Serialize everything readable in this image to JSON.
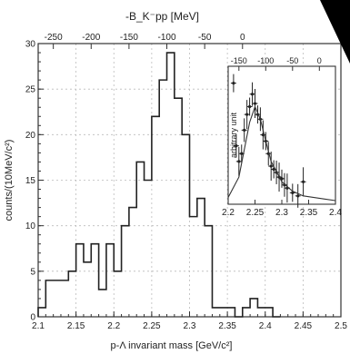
{
  "chart_data": [
    {
      "type": "line",
      "step": true,
      "xlabel": "p-Λ invariant mass [GeV/c²]",
      "ylabel": "counts/(10MeV/c²)",
      "top_axis_label": "-B_K⁻pp [MeV]",
      "xlim": [
        2.1,
        2.5
      ],
      "ylim": [
        0,
        30
      ],
      "grid": true,
      "x_ticks": [
        "2.1",
        "2.15",
        "2.2",
        "2.25",
        "2.3",
        "2.35",
        "2.4",
        "2.45",
        "2.5"
      ],
      "y_ticks": [
        "0",
        "5",
        "10",
        "15",
        "20",
        "25",
        "30"
      ],
      "top_ticks": [
        "-250",
        "-200",
        "-150",
        "-100",
        "-50",
        "0"
      ],
      "series": [
        {
          "bin_edges": [
            2.1,
            2.11,
            2.12,
            2.13,
            2.14,
            2.15,
            2.16,
            2.17,
            2.18,
            2.19,
            2.2,
            2.21,
            2.22,
            2.23,
            2.24,
            2.25,
            2.26,
            2.27,
            2.28,
            2.29,
            2.3,
            2.31,
            2.32,
            2.33,
            2.34,
            2.35,
            2.36,
            2.37,
            2.38,
            2.39,
            2.4,
            2.41,
            2.42
          ],
          "counts": [
            1,
            4,
            4,
            4,
            5,
            8,
            6,
            8,
            3,
            8,
            5,
            10,
            12,
            17,
            15,
            22,
            26,
            29,
            24,
            20,
            11,
            13,
            10,
            1,
            1,
            1,
            0,
            1,
            2,
            1,
            1,
            0
          ]
        }
      ]
    },
    {
      "type": "line",
      "inset": true,
      "ylabel": "arbitrary unit",
      "xlim": [
        2.2,
        2.4
      ],
      "x_ticks": [
        "2.2",
        "2.25",
        "2.3",
        "2.35",
        "2.4"
      ],
      "top_ticks": [
        "-150",
        "-100",
        "-50",
        "0"
      ],
      "series": [
        {
          "x": [
            2.21,
            2.215,
            2.22,
            2.225,
            2.23,
            2.235,
            2.24,
            2.245,
            2.25,
            2.255,
            2.26,
            2.265,
            2.27,
            2.275,
            2.28,
            2.285,
            2.29,
            2.295,
            2.3,
            2.305,
            2.31,
            2.32,
            2.33,
            2.34
          ],
          "y": [
            0.75,
            0.35,
            0.25,
            0.3,
            0.45,
            0.55,
            0.6,
            0.68,
            0.62,
            0.55,
            0.52,
            0.42,
            0.38,
            0.3,
            0.22,
            0.2,
            0.18,
            0.15,
            0.14,
            0.1,
            0.08,
            0.05,
            0.03,
            0.12
          ]
        },
        {
          "x": [
            2.2,
            2.22,
            2.24,
            2.25,
            2.26,
            2.27,
            2.28,
            2.3,
            2.32,
            2.34,
            2.36,
            2.38,
            2.4
          ],
          "y": [
            0.02,
            0.15,
            0.5,
            0.6,
            0.52,
            0.38,
            0.25,
            0.12,
            0.06,
            0.03,
            0.02,
            0.01,
            0.0
          ]
        }
      ]
    }
  ]
}
